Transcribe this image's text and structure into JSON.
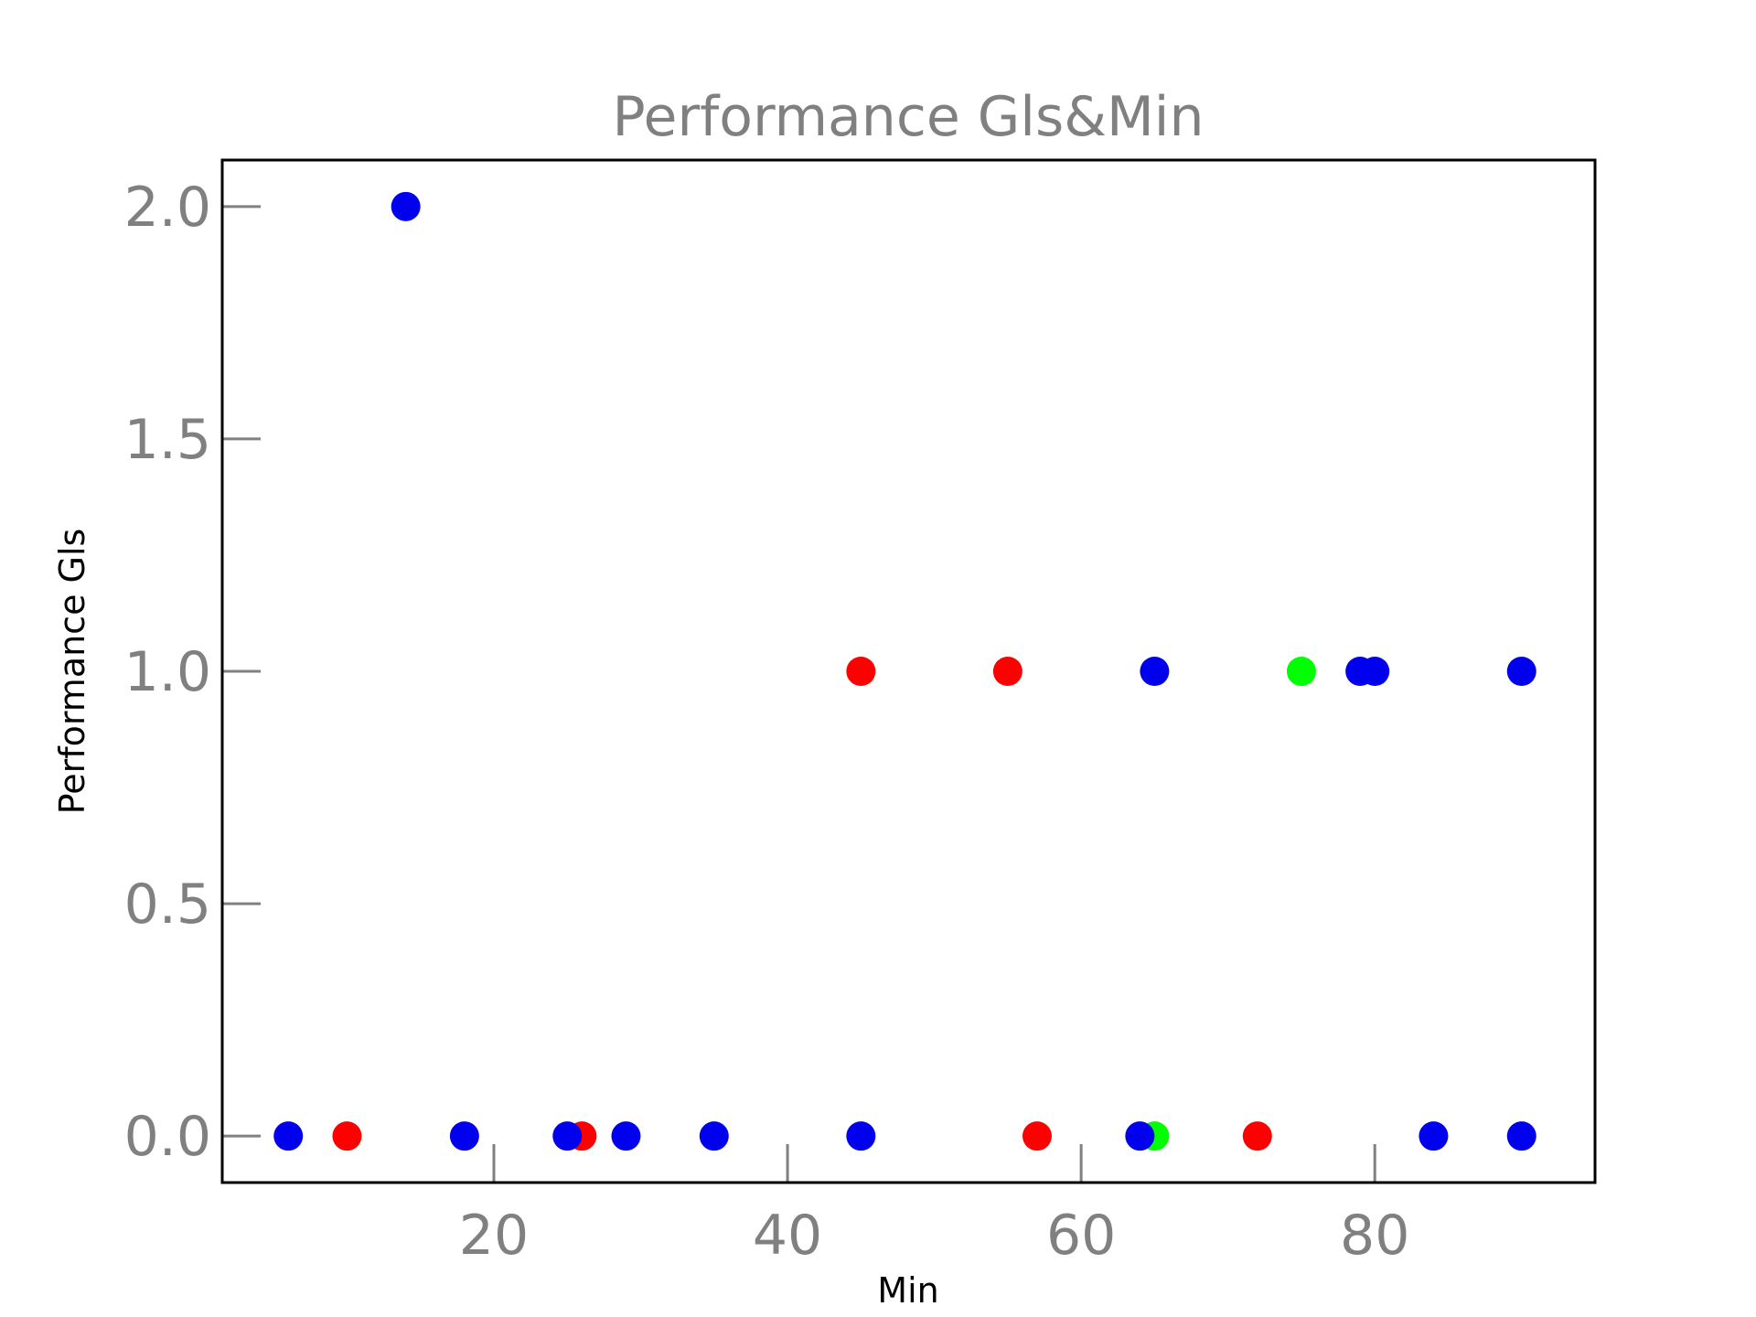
{
  "chart_data": {
    "type": "scatter",
    "title": "Performance Gls&Min",
    "xlabel": "Min",
    "ylabel": "Performance Gls",
    "xlim": [
      1.5,
      95
    ],
    "ylim": [
      -0.1,
      2.1
    ],
    "xticks": [
      20,
      40,
      60,
      80
    ],
    "yticks": [
      0.0,
      0.5,
      1.0,
      1.5,
      2.0
    ],
    "xtick_labels": [
      "20",
      "40",
      "60",
      "80"
    ],
    "ytick_labels": [
      "0.0",
      "0.5",
      "1.0",
      "1.5",
      "2.0"
    ],
    "grid": false,
    "legend": "none",
    "colors": {
      "blue": "#0000ee",
      "red": "#ff0000",
      "green": "#00ff00"
    },
    "points": [
      {
        "x": 6,
        "y": 0,
        "color": "blue"
      },
      {
        "x": 10,
        "y": 0,
        "color": "red"
      },
      {
        "x": 14,
        "y": 2,
        "color": "blue"
      },
      {
        "x": 18,
        "y": 0,
        "color": "blue"
      },
      {
        "x": 26,
        "y": 0,
        "color": "red"
      },
      {
        "x": 25,
        "y": 0,
        "color": "blue"
      },
      {
        "x": 29,
        "y": 0,
        "color": "blue"
      },
      {
        "x": 35,
        "y": 0,
        "color": "blue"
      },
      {
        "x": 45,
        "y": 1,
        "color": "red"
      },
      {
        "x": 45,
        "y": 0,
        "color": "blue"
      },
      {
        "x": 55,
        "y": 1,
        "color": "red"
      },
      {
        "x": 57,
        "y": 0,
        "color": "red"
      },
      {
        "x": 65,
        "y": 0,
        "color": "green"
      },
      {
        "x": 64,
        "y": 0,
        "color": "blue"
      },
      {
        "x": 65,
        "y": 1,
        "color": "blue"
      },
      {
        "x": 72,
        "y": 0,
        "color": "red"
      },
      {
        "x": 75,
        "y": 1,
        "color": "green"
      },
      {
        "x": 79,
        "y": 1,
        "color": "blue"
      },
      {
        "x": 80,
        "y": 1,
        "color": "blue"
      },
      {
        "x": 84,
        "y": 0,
        "color": "blue"
      },
      {
        "x": 90,
        "y": 1,
        "color": "blue"
      },
      {
        "x": 90,
        "y": 0,
        "color": "blue"
      }
    ]
  }
}
